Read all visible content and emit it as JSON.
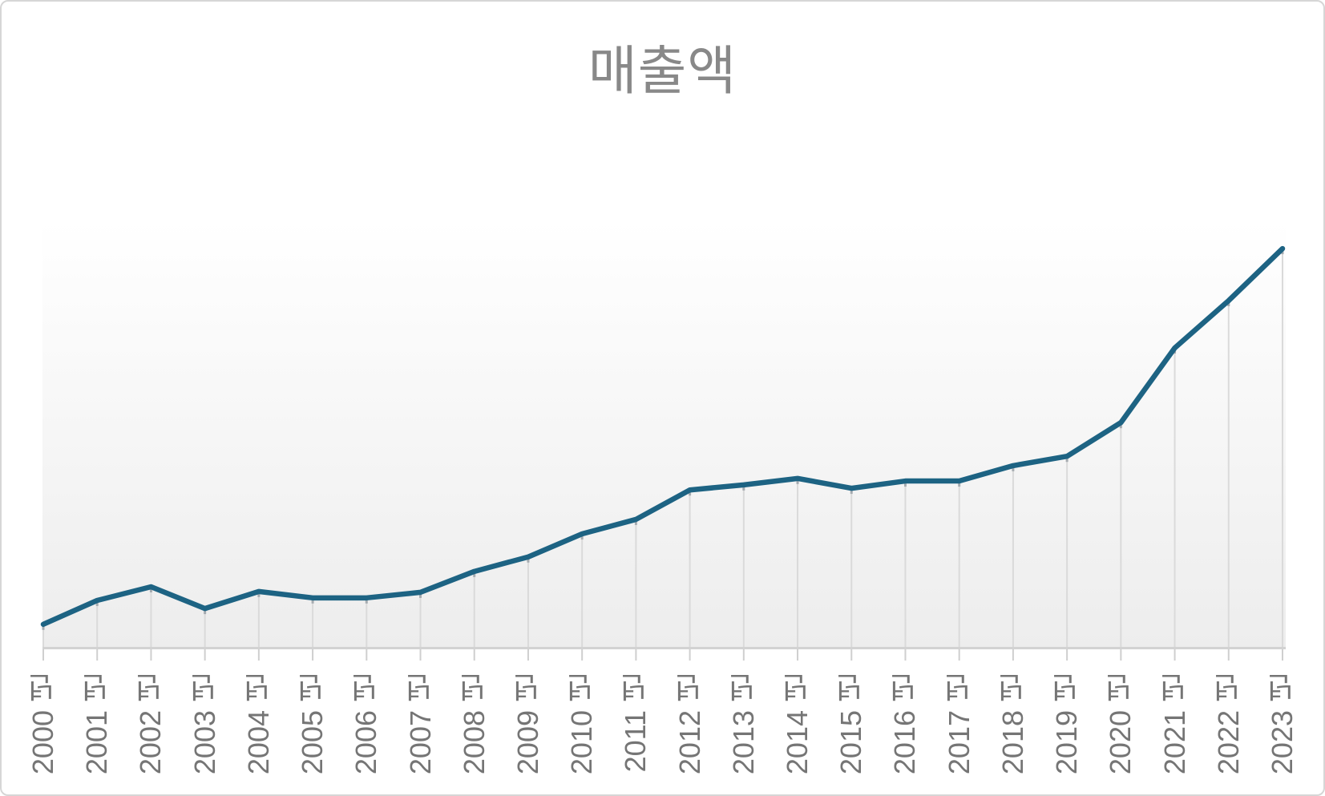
{
  "chart": {
    "title": "매출액"
  },
  "chart_data": {
    "type": "line",
    "title": "매출액",
    "categories": [
      "2000 년",
      "2001 년",
      "2002 년",
      "2003 년",
      "2004 년",
      "2005 년",
      "2006 년",
      "2007 년",
      "2008 년",
      "2009 년",
      "2010 년",
      "2011 년",
      "2012 년",
      "2013 년",
      "2014 년",
      "2015 년",
      "2016 년",
      "2017 년",
      "2018 년",
      "2019 년",
      "2020 년",
      "2021 년",
      "2022 년",
      "2023 년"
    ],
    "series": [
      {
        "name": "매출액",
        "values": [
          5.3,
          10.9,
          14.1,
          9.0,
          13.0,
          11.5,
          11.5,
          12.8,
          17.7,
          21.1,
          26.5,
          29.9,
          36.8,
          38.0,
          39.5,
          37.2,
          38.9,
          38.9,
          42.5,
          44.7,
          52.6,
          70.1,
          81.2,
          93.4
        ]
      }
    ],
    "ylim": [
      0,
      100
    ],
    "unit": "relative scale — chart shows no y-axis tick labels",
    "xlabel": "",
    "ylabel": "",
    "legend": "none",
    "grid": "vertical drop-lines from each data point to the x-axis",
    "y_axis_visible": false,
    "x_axis_visible": true
  },
  "style": {
    "line_color": "#1d6383",
    "plot_bg_top": "#ffffff",
    "plot_bg_bottom": "#ededed",
    "gridline_color": "#dadada",
    "gridline_cap_color": "#a5abb0",
    "axis_color": "#d2d2d2",
    "tick_color": "#cfcfcf",
    "label_color": "#757575",
    "title_color": "#888888",
    "frame_border_color": "#d6d6d6"
  }
}
